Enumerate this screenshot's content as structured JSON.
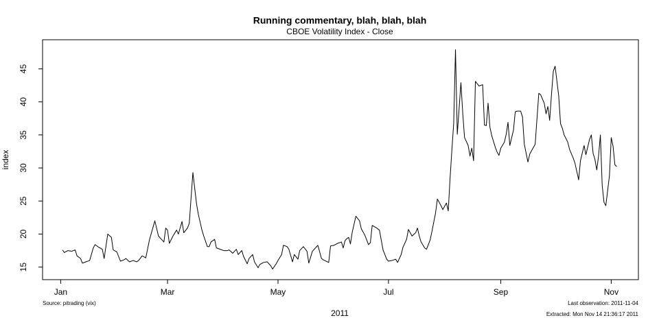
{
  "chart_data": {
    "type": "line",
    "title": "Running commentary, blah, blah, blah",
    "subtitle": "CBOE Volatility Index - Close",
    "xlabel": "2011",
    "ylabel": "index",
    "notes": [
      "Source: pitrading (vix)",
      "Last observation: 2011-11-04",
      "Extracted: Mon Nov 14 21:36:17 2011"
    ],
    "color": "#000000",
    "xlim": [
      -9,
      320
    ],
    "ylim": [
      13.1,
      49.4
    ],
    "xticks": [
      {
        "value": 1,
        "label": "Jan"
      },
      {
        "value": 60,
        "label": "Mar"
      },
      {
        "value": 121,
        "label": "May"
      },
      {
        "value": 182,
        "label": "Jul"
      },
      {
        "value": 244,
        "label": "Sep"
      },
      {
        "value": 305,
        "label": "Nov"
      }
    ],
    "yticks": [
      15,
      20,
      25,
      30,
      35,
      40,
      45
    ],
    "x": [
      2,
      3,
      5,
      7,
      9,
      10,
      12,
      13,
      15,
      17,
      19,
      20,
      22,
      24,
      25,
      27,
      29,
      30,
      32,
      34,
      36,
      37,
      39,
      41,
      43,
      44,
      46,
      48,
      50,
      53,
      55,
      57,
      58,
      59,
      60,
      61,
      63,
      65,
      66,
      68,
      69,
      71,
      72,
      74,
      76,
      77,
      79,
      80,
      82,
      83,
      84,
      86,
      87,
      89,
      91,
      93,
      94,
      96,
      98,
      99,
      101,
      102,
      104,
      105,
      107,
      108,
      110,
      111,
      113,
      115,
      117,
      118,
      120,
      121,
      123,
      124,
      126,
      127,
      129,
      130,
      132,
      133,
      135,
      137,
      138,
      140,
      142,
      143,
      145,
      146,
      149,
      150,
      152,
      154,
      156,
      157,
      158,
      159,
      160,
      161,
      162,
      164,
      166,
      167,
      169,
      171,
      172,
      173,
      175,
      177,
      179,
      181,
      182,
      184,
      186,
      187,
      189,
      190,
      192,
      193,
      195,
      197,
      198,
      199,
      200,
      202,
      203,
      205,
      206,
      208,
      209,
      211,
      212,
      214,
      215,
      216,
      217,
      218,
      219,
      220,
      222,
      223,
      224,
      226,
      227,
      228,
      229,
      230,
      232,
      234,
      235,
      236,
      237,
      238,
      239,
      241,
      242,
      243,
      244,
      246,
      247,
      248,
      249,
      251,
      252,
      253,
      255,
      256,
      257,
      259,
      260,
      262,
      263,
      265,
      266,
      268,
      269,
      270,
      271,
      272,
      273,
      274,
      276,
      277,
      278,
      279,
      281,
      282,
      284,
      285,
      287,
      288,
      290,
      291,
      293,
      294,
      295,
      296,
      297,
      298,
      299,
      300,
      301,
      302,
      304,
      305,
      306,
      307,
      308
    ],
    "values": [
      17.6,
      17.2,
      17.5,
      17.4,
      17.6,
      16.7,
      16.3,
      15.6,
      15.8,
      16.0,
      17.9,
      18.4,
      18.0,
      17.7,
      16.3,
      20.0,
      19.5,
      17.6,
      17.3,
      15.9,
      16.1,
      16.3,
      15.8,
      16.0,
      15.8,
      16.0,
      16.7,
      16.4,
      19.1,
      22.0,
      19.7,
      19.1,
      18.8,
      20.9,
      20.6,
      18.6,
      19.7,
      20.6,
      20.0,
      21.9,
      20.2,
      20.9,
      21.6,
      29.3,
      24.6,
      23.0,
      20.6,
      19.7,
      18.1,
      18.1,
      18.8,
      19.2,
      17.9,
      17.7,
      17.5,
      17.5,
      17.6,
      17.1,
      17.7,
      16.9,
      17.5,
      16.6,
      15.5,
      16.3,
      16.9,
      15.8,
      14.9,
      15.4,
      15.7,
      15.8,
      15.2,
      14.7,
      15.5,
      16.0,
      16.9,
      18.3,
      18.1,
      17.7,
      15.8,
      16.9,
      16.2,
      17.5,
      18.1,
      17.4,
      15.6,
      17.4,
      18.0,
      18.3,
      16.3,
      16.1,
      15.7,
      18.2,
      18.3,
      18.6,
      18.8,
      17.9,
      19.0,
      19.3,
      19.5,
      18.5,
      20.3,
      22.7,
      22.0,
      20.8,
      19.8,
      18.4,
      18.7,
      21.3,
      21.0,
      20.6,
      17.6,
      16.2,
      15.9,
      16.0,
      16.2,
      15.7,
      16.9,
      18.0,
      19.2,
      20.7,
      19.7,
      20.2,
      20.9,
      19.7,
      18.8,
      17.9,
      17.7,
      19.1,
      20.4,
      23.2,
      25.3,
      24.3,
      23.7,
      24.7,
      23.5,
      28.4,
      32.7,
      36.7,
      47.9,
      35.1,
      42.9,
      38.3,
      34.6,
      33.4,
      31.8,
      33.0,
      31.1,
      43.1,
      42.4,
      42.6,
      36.5,
      36.4,
      39.8,
      36.2,
      34.9,
      33.1,
      32.4,
      31.9,
      33.0,
      33.9,
      35.1,
      36.9,
      33.4,
      35.7,
      38.5,
      38.6,
      38.6,
      37.7,
      33.6,
      30.9,
      32.1,
      33.1,
      33.6,
      41.3,
      41.1,
      39.8,
      38.2,
      39.3,
      37.2,
      41.1,
      44.6,
      45.4,
      40.9,
      36.7,
      36.0,
      35.0,
      33.9,
      32.8,
      31.5,
      30.7,
      28.2,
      31.1,
      33.4,
      32.0,
      34.3,
      35.0,
      32.2,
      31.3,
      29.7,
      31.8,
      35.0,
      27.4,
      24.8,
      24.3,
      28.8,
      34.6,
      33.3,
      30.5,
      30.2
    ]
  }
}
